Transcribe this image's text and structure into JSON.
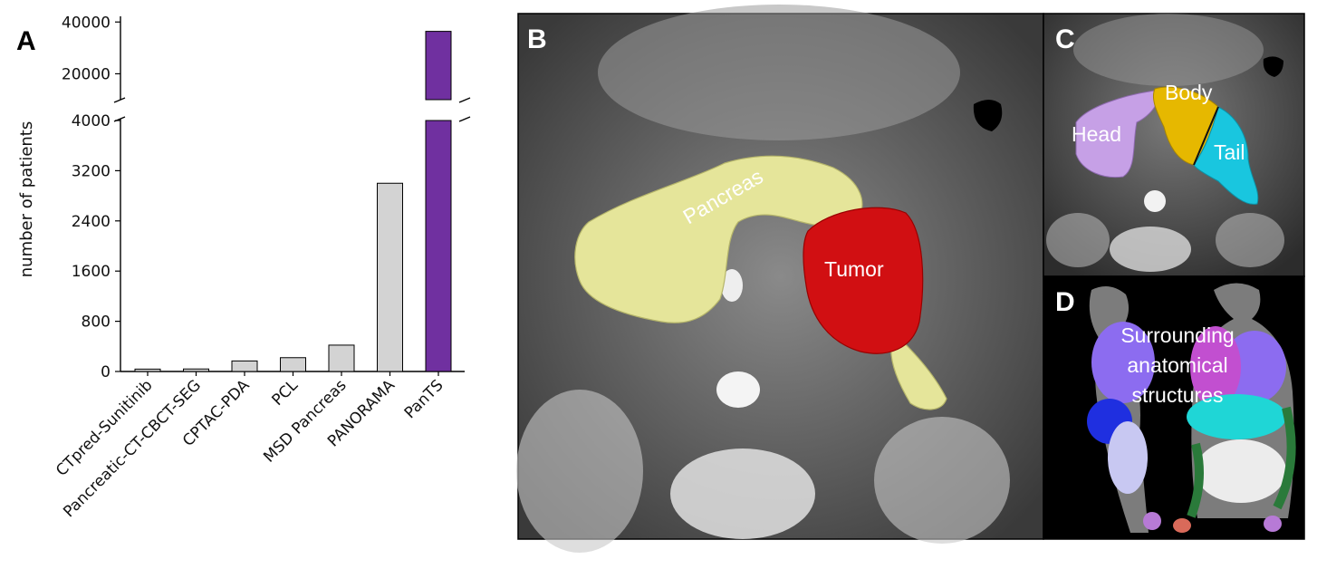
{
  "panels": {
    "a": "A",
    "b": "B",
    "c": "C",
    "d": "D"
  },
  "image_labels": {
    "pancreas": "Pancreas",
    "tumor": "Tumor",
    "head": "Head",
    "body": "Body",
    "tail": "Tail",
    "surrounding_1": "Surrounding",
    "surrounding_2": "anatomical",
    "surrounding_3": "structures"
  },
  "colors": {
    "gray_bar": "#d3d3d3",
    "highlight_bar": "#7030a0",
    "pancreas": "#e5e59a",
    "tumor": "#d10f12",
    "head": "#c6a0e6",
    "body": "#e6b800",
    "tail": "#19c6df"
  },
  "chart_data": {
    "type": "bar",
    "ylabel": "number of patients",
    "categories": [
      "CTpred-Sunitinib",
      "Pancreatic-CT-CBCT-SEG",
      "CPTAC-PDA",
      "PCL",
      "MSD Pancreas",
      "PANORAMA",
      "PanTS"
    ],
    "values": [
      38,
      40,
      168,
      220,
      420,
      3000,
      36390
    ],
    "highlight": "PanTS",
    "broken_axis": true,
    "lower_ylim": [
      0,
      4000
    ],
    "lower_ticks": [
      "0",
      "800",
      "1600",
      "2400",
      "3200",
      "4000"
    ],
    "upper_ylim": [
      10000,
      45000
    ],
    "upper_ticks": [
      "20000",
      "40000"
    ],
    "grid": false
  }
}
